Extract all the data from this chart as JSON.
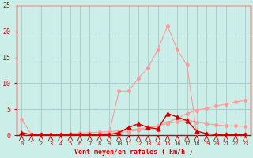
{
  "xlabel": "Vent moyen/en rafales ( km/h )",
  "bg_color": "#cceee8",
  "grid_color": "#aacccc",
  "line_peak_x": [
    0,
    1,
    2,
    3,
    4,
    5,
    6,
    7,
    8,
    9,
    10,
    11,
    12,
    13,
    14,
    15,
    16,
    17,
    18,
    19,
    20,
    21,
    22,
    23
  ],
  "line_peak_y": [
    0.1,
    0.1,
    0.1,
    0.1,
    0.1,
    0.1,
    0.1,
    0.1,
    0.2,
    0.4,
    8.5,
    8.5,
    11.0,
    13.0,
    16.5,
    21.0,
    16.5,
    13.5,
    0.3,
    0.2,
    0.1,
    0.1,
    0.1,
    0.1
  ],
  "line_ramp_x": [
    0,
    1,
    2,
    3,
    4,
    5,
    6,
    7,
    8,
    9,
    10,
    11,
    12,
    13,
    14,
    15,
    16,
    17,
    18,
    19,
    20,
    21,
    22,
    23
  ],
  "line_ramp_y": [
    0.1,
    0.1,
    0.1,
    0.1,
    0.1,
    0.1,
    0.1,
    0.2,
    0.3,
    0.4,
    0.5,
    0.7,
    1.0,
    1.3,
    1.8,
    2.5,
    3.2,
    4.2,
    4.8,
    5.2,
    5.6,
    6.0,
    6.4,
    6.7
  ],
  "line_drop_x": [
    0,
    1,
    2,
    3,
    4,
    5,
    6,
    7,
    8,
    9,
    10,
    11,
    12,
    13,
    14,
    15,
    16,
    17,
    18,
    19,
    20,
    21,
    22,
    23
  ],
  "line_drop_y": [
    3.0,
    0.2,
    0.1,
    0.2,
    0.2,
    0.3,
    0.4,
    0.5,
    0.6,
    0.7,
    0.8,
    1.0,
    1.2,
    1.5,
    1.8,
    2.2,
    2.6,
    3.0,
    2.5,
    2.2,
    2.0,
    1.8,
    1.8,
    1.7
  ],
  "line_dark_x": [
    0,
    1,
    2,
    3,
    4,
    5,
    6,
    7,
    8,
    9,
    10,
    11,
    12,
    13,
    14,
    15,
    16,
    17,
    18,
    19,
    20,
    21,
    22,
    23
  ],
  "line_dark_y": [
    0.5,
    0.1,
    0.1,
    0.1,
    0.1,
    0.1,
    0.1,
    0.1,
    0.1,
    0.1,
    0.5,
    1.5,
    2.2,
    1.5,
    1.2,
    4.2,
    3.5,
    2.8,
    0.8,
    0.3,
    0.1,
    0.1,
    0.1,
    0.1
  ],
  "line_color_light": "#ff9999",
  "line_color_dark": "#cc0000",
  "ylim": [
    0,
    25
  ],
  "xlim_min": -0.5,
  "xlim_max": 23.5,
  "yticks": [
    0,
    5,
    10,
    15,
    20,
    25
  ],
  "xticks": [
    0,
    1,
    2,
    3,
    4,
    5,
    6,
    7,
    8,
    9,
    10,
    11,
    12,
    13,
    14,
    15,
    16,
    17,
    18,
    19,
    20,
    21,
    22,
    23
  ],
  "yticklabels": [
    "0",
    "5",
    "10",
    "15",
    "20",
    "25"
  ],
  "xlabel_color": "#cc0000",
  "tick_color_x": "#cc0000",
  "tick_color_y": "#cc0000",
  "spine_color": "#cc0000",
  "xlabel_fontsize": 6,
  "ytick_fontsize": 6,
  "xtick_fontsize": 5
}
